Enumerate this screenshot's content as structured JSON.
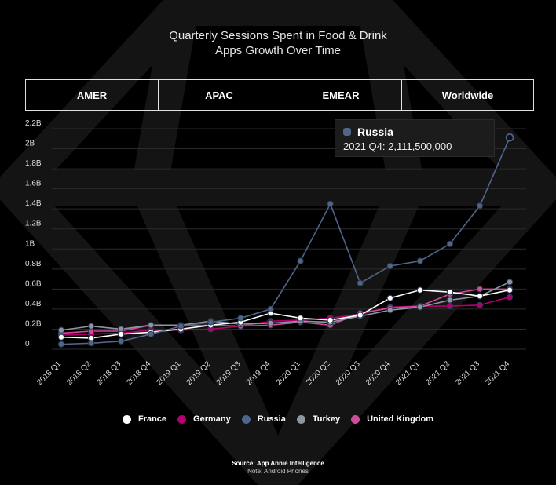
{
  "title_lines": [
    "Quarterly Sessions Spent in Food & Drink",
    "Apps Growth Over Time"
  ],
  "tabs": [
    "AMER",
    "APAC",
    "EMEAR",
    "Worldwide"
  ],
  "tooltip": {
    "series": "Russia",
    "text": "2021 Q4: 2,111,500,000",
    "color": "#4f6689"
  },
  "legend": [
    {
      "name": "France",
      "color": "#ffffff"
    },
    {
      "name": "Germany",
      "color": "#b2006e"
    },
    {
      "name": "Russia",
      "color": "#4f6689"
    },
    {
      "name": "Turkey",
      "color": "#8e95a3"
    },
    {
      "name": "United Kingdom",
      "color": "#d24b9e"
    }
  ],
  "source": {
    "text": "Source: App Annie Intelligence",
    "note": "Note: Android Phones"
  },
  "chart_data": {
    "type": "line",
    "title": "Quarterly Sessions Spent in Food & Drink Apps Growth Over Time",
    "xlabel": "",
    "ylabel": "",
    "categories": [
      "2018 Q1",
      "2018 Q2",
      "2018 Q3",
      "2018 Q4",
      "2019 Q1",
      "2019 Q2",
      "2019 Q3",
      "2019 Q4",
      "2020 Q1",
      "2020 Q2",
      "2020 Q3",
      "2020 Q4",
      "2021 Q1",
      "2021 Q2",
      "2021 Q3",
      "2021 Q4"
    ],
    "ylim": [
      0,
      2200000000
    ],
    "yticks": [
      0,
      200000000,
      400000000,
      600000000,
      800000000,
      1000000000,
      1200000000,
      1400000000,
      1600000000,
      1800000000,
      2000000000,
      2200000000
    ],
    "ytick_labels": [
      "0",
      "0.2B",
      "0.4B",
      "0.6B",
      "0.8B",
      "1B",
      "1.2B",
      "1.4B",
      "1.6B",
      "1.8B",
      "2B",
      "2.2B"
    ],
    "grid": true,
    "legend_position": "bottom",
    "series": [
      {
        "name": "France",
        "color": "#ffffff",
        "values": [
          120000000,
          110000000,
          150000000,
          170000000,
          200000000,
          240000000,
          270000000,
          360000000,
          310000000,
          290000000,
          340000000,
          510000000,
          590000000,
          570000000,
          530000000,
          590000000
        ]
      },
      {
        "name": "Germany",
        "color": "#b2006e",
        "values": [
          140000000,
          150000000,
          160000000,
          190000000,
          190000000,
          200000000,
          230000000,
          280000000,
          290000000,
          310000000,
          350000000,
          420000000,
          430000000,
          430000000,
          440000000,
          520000000
        ]
      },
      {
        "name": "Russia",
        "color": "#4f6689",
        "values": [
          50000000,
          60000000,
          80000000,
          150000000,
          230000000,
          270000000,
          310000000,
          400000000,
          880000000,
          1450000000,
          660000000,
          830000000,
          880000000,
          1050000000,
          1430000000,
          2111500000
        ]
      },
      {
        "name": "Turkey",
        "color": "#8e95a3",
        "values": [
          190000000,
          230000000,
          200000000,
          240000000,
          240000000,
          280000000,
          250000000,
          260000000,
          280000000,
          270000000,
          330000000,
          390000000,
          420000000,
          490000000,
          530000000,
          670000000
        ]
      },
      {
        "name": "United Kingdom",
        "color": "#d24b9e",
        "values": [
          160000000,
          180000000,
          180000000,
          240000000,
          230000000,
          240000000,
          230000000,
          240000000,
          270000000,
          240000000,
          360000000,
          410000000,
          430000000,
          550000000,
          600000000,
          600000000
        ]
      }
    ],
    "highlighted_series": "Russia",
    "highlighted_category": "2021 Q4"
  }
}
